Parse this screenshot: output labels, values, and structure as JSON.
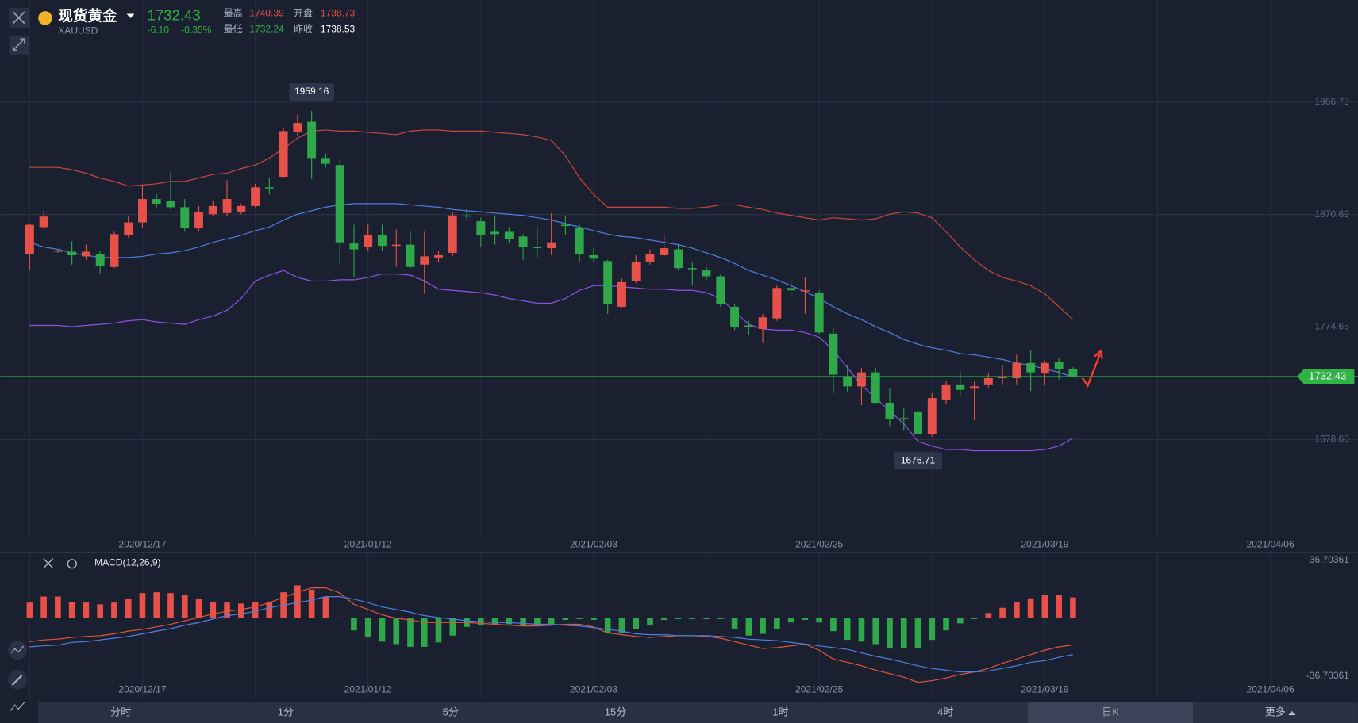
{
  "quote": {
    "name": "现货黄金",
    "symbol": "XAUUSD",
    "last": "1732.43",
    "change": "-6.10",
    "change_pct": "-0.35%",
    "high_label": "最高",
    "high": "1740.39",
    "open_label": "开盘",
    "open": "1738.73",
    "low_label": "最低",
    "low": "1732.24",
    "prev_label": "昨收",
    "prev_close": "1738.53"
  },
  "tabs": [
    "分时",
    "1分",
    "5分",
    "15分",
    "1时",
    "4时",
    "日K",
    "更多"
  ],
  "active_tab": 6,
  "chart_data": [
    {
      "type": "candlestick",
      "up_color": "#e8514a",
      "down_color": "#2ea84a",
      "open": [
        1837,
        1860,
        1839,
        1839,
        1835,
        1837,
        1826,
        1853,
        1864,
        1884,
        1882,
        1877,
        1859,
        1871,
        1872,
        1873,
        1878,
        1894,
        1903,
        1941,
        1950,
        1919,
        1913,
        1846,
        1843,
        1853,
        1844,
        1845,
        1828,
        1834,
        1838,
        1870,
        1865,
        1856,
        1856,
        1852,
        1843,
        1842,
        1862,
        1859,
        1836,
        1831,
        1792,
        1814,
        1830,
        1836,
        1841,
        1825,
        1823,
        1818,
        1792,
        1776,
        1773,
        1782,
        1808,
        1805,
        1804,
        1769,
        1732,
        1724,
        1736,
        1710,
        1697,
        1702,
        1683,
        1712,
        1725,
        1722,
        1725,
        1731,
        1731,
        1744,
        1735,
        1745,
        1738.73
      ],
      "high": [
        1863,
        1874,
        1841,
        1848,
        1845,
        1840,
        1856,
        1869,
        1895,
        1888,
        1907,
        1884,
        1878,
        1882,
        1900,
        1880,
        1897,
        1902,
        1945,
        1956,
        1959.16,
        1923,
        1917,
        1862,
        1862,
        1862,
        1858,
        1857,
        1856,
        1840,
        1873,
        1875,
        1868,
        1870,
        1860,
        1854,
        1860,
        1872,
        1870,
        1862,
        1842,
        1832,
        1816,
        1836,
        1841,
        1854,
        1845,
        1830,
        1826,
        1820,
        1794,
        1780,
        1786,
        1810,
        1815,
        1817,
        1806,
        1774,
        1742,
        1740,
        1740,
        1722,
        1705,
        1710,
        1718,
        1729,
        1737,
        1728,
        1735,
        1742,
        1751,
        1755,
        1746,
        1748,
        1740.39
      ],
      "low": [
        1823,
        1858,
        1838,
        1828,
        1832,
        1820,
        1825,
        1851,
        1860,
        1877,
        1875,
        1856,
        1857,
        1869,
        1869,
        1871,
        1877,
        1888,
        1902,
        1938,
        1901,
        1911,
        1829,
        1817,
        1840,
        1840,
        1826,
        1825,
        1803,
        1830,
        1835,
        1866,
        1843,
        1845,
        1846,
        1832,
        1834,
        1836,
        1853,
        1830,
        1830,
        1786,
        1791,
        1812,
        1828,
        1835,
        1823,
        1810,
        1815,
        1792,
        1772,
        1768,
        1761,
        1780,
        1800,
        1786,
        1769,
        1718,
        1719,
        1708,
        1709,
        1690,
        1686,
        1676.71,
        1681,
        1709,
        1716,
        1695,
        1723,
        1725,
        1725,
        1720,
        1725,
        1730,
        1732.24
      ],
      "close": [
        1862,
        1869,
        1840,
        1836,
        1839,
        1827,
        1854,
        1864,
        1884,
        1880,
        1877,
        1859,
        1873,
        1878,
        1884,
        1878,
        1894,
        1893,
        1942,
        1949,
        1919,
        1914,
        1847,
        1841,
        1853,
        1844,
        1845,
        1826,
        1835,
        1836,
        1870,
        1869,
        1853,
        1854,
        1850,
        1843,
        1842,
        1847,
        1861,
        1837,
        1833,
        1794,
        1813,
        1830,
        1837,
        1842,
        1825,
        1824,
        1818,
        1794,
        1775,
        1775,
        1783,
        1808,
        1806,
        1806,
        1770,
        1734,
        1724,
        1736,
        1710,
        1696,
        1696,
        1683,
        1714,
        1725,
        1721,
        1724,
        1731,
        1732,
        1744,
        1736,
        1744,
        1738.53,
        1732.43
      ],
      "bands": [
        {
          "color": "#c9463b",
          "values": [
            1911,
            1911,
            1911,
            1909,
            1906,
            1902,
            1899,
            1895,
            1896,
            1897,
            1899,
            1899,
            1902,
            1905,
            1906,
            1910,
            1913,
            1919,
            1927,
            1936,
            1942,
            1943,
            1942,
            1942,
            1941,
            1940,
            1939,
            1942,
            1943,
            1943,
            1942,
            1942,
            1942,
            1941,
            1940,
            1939,
            1937,
            1934,
            1921,
            1902,
            1888,
            1877,
            1877,
            1877,
            1877,
            1877,
            1876,
            1876,
            1877,
            1879,
            1879,
            1877,
            1875,
            1872,
            1870,
            1868,
            1866,
            1868,
            1867,
            1866,
            1867,
            1871,
            1873,
            1872,
            1868,
            1856,
            1843,
            1832,
            1823,
            1817,
            1814,
            1810,
            1803,
            1792,
            1781
          ]
        },
        {
          "color": "#4d7fe3",
          "values": [
            1847,
            1843,
            1841,
            1838,
            1836,
            1834,
            1834,
            1834,
            1835,
            1837,
            1838,
            1840,
            1843,
            1847,
            1850,
            1853,
            1857,
            1860,
            1866,
            1871,
            1874,
            1877,
            1879,
            1880,
            1880,
            1880,
            1880,
            1879,
            1878,
            1877,
            1875,
            1874,
            1873,
            1872,
            1871,
            1870,
            1868,
            1866,
            1863,
            1860,
            1857,
            1854,
            1852,
            1851,
            1849,
            1847,
            1845,
            1842,
            1838,
            1834,
            1829,
            1823,
            1819,
            1815,
            1810,
            1805,
            1799,
            1792,
            1786,
            1781,
            1775,
            1770,
            1764,
            1760,
            1757,
            1755,
            1752,
            1751,
            1749,
            1747,
            1744,
            1742,
            1739,
            1736,
            1732
          ]
        },
        {
          "color": "#8d52e6",
          "values": [
            1776,
            1776,
            1776,
            1775,
            1776,
            1777,
            1778,
            1780,
            1781,
            1779,
            1778,
            1777,
            1781,
            1784,
            1789,
            1799,
            1814,
            1819,
            1823,
            1817,
            1814,
            1814,
            1815,
            1815,
            1817,
            1820,
            1820,
            1819,
            1814,
            1807,
            1806,
            1805,
            1804,
            1802,
            1799,
            1797,
            1795,
            1795,
            1799,
            1806,
            1810,
            1810,
            1809,
            1808,
            1807,
            1807,
            1806,
            1806,
            1804,
            1799,
            1788,
            1777,
            1773,
            1772,
            1772,
            1770,
            1766,
            1755,
            1740,
            1725,
            1714,
            1703,
            1692,
            1677,
            1673,
            1670,
            1670,
            1669,
            1669,
            1669,
            1669,
            1669,
            1670,
            1673,
            1680
          ]
        }
      ],
      "ylim": [
        1596,
        2054
      ],
      "yticks": [
        1966.73,
        1870.69,
        1774.65,
        {
          "value": 1678.6,
          "label": "1678.60"
        }
      ],
      "xlim": [
        -2.09,
        94.2
      ],
      "xticks": [
        {
          "value": 8,
          "label": "2020/12/17"
        },
        {
          "value": 24,
          "label": "2021/01/12"
        },
        {
          "value": 40,
          "label": "2021/02/03"
        },
        {
          "value": 56,
          "label": "2021/02/25"
        },
        {
          "value": 72,
          "label": "2021/03/19"
        },
        {
          "value": 88,
          "label": "2021/04/06"
        }
      ],
      "xminor": [
        0,
        16,
        32,
        48,
        64,
        80
      ],
      "grid": true,
      "last_color": "#2fb344"
    },
    {
      "type": "macd",
      "title": "MACD(12,26,9)",
      "up_color": "#e8514a",
      "down_color": "#2ea84a",
      "histogram": [
        9.9,
        13.7,
        13.7,
        10.4,
        9.9,
        8.8,
        9.9,
        12.1,
        15.9,
        16.4,
        15.9,
        14.8,
        12.1,
        10.4,
        9.9,
        9.3,
        10.4,
        10.4,
        16.4,
        20.8,
        18.1,
        13.7,
        0.5,
        -7.7,
        -12.1,
        -14.8,
        -16.4,
        -18.1,
        -18.1,
        -15.3,
        -11.0,
        -5.5,
        -4.4,
        -4.4,
        -3.8,
        -4.4,
        -4.4,
        -3.8,
        -1.1,
        -0.5,
        -1.1,
        -9.3,
        -9.3,
        -7.1,
        -4.4,
        -1.1,
        -0.5,
        -0.5,
        -0.5,
        -0.5,
        -7.1,
        -11.0,
        -9.9,
        -6.6,
        -2.7,
        -1.1,
        -2.7,
        -8.2,
        -13.7,
        -14.8,
        -16.4,
        -19.2,
        -19.2,
        -18.6,
        -13.7,
        -7.7,
        -3.3,
        -0.5,
        3.3,
        6.6,
        10.4,
        12.6,
        14.8,
        14.8,
        13.2
      ],
      "lines": [
        {
          "color": "#e0553a",
          "values": [
            -14.8,
            -13.7,
            -13.2,
            -12.1,
            -11.5,
            -11.0,
            -9.9,
            -8.2,
            -7.1,
            -5.5,
            -3.8,
            -1.6,
            0.5,
            2.7,
            4.4,
            5.5,
            7.1,
            9.9,
            13.2,
            16.4,
            19.2,
            19.2,
            15.9,
            8.8,
            5.5,
            2.2,
            0,
            -1.1,
            -2.7,
            -2.7,
            -2.7,
            -2.7,
            -3.3,
            -3.8,
            -4.4,
            -4.9,
            -4.9,
            -4.4,
            -3.8,
            -3.8,
            -5.5,
            -9.3,
            -10.4,
            -11.5,
            -12.1,
            -11.5,
            -11.0,
            -11.0,
            -11.5,
            -12.6,
            -14.8,
            -17.0,
            -19.2,
            -18.6,
            -17.5,
            -16.4,
            -20.3,
            -25.8,
            -27.9,
            -30.1,
            -32.9,
            -35.1,
            -37.3,
            -40.6,
            -39.5,
            -37.8,
            -35.6,
            -34.0,
            -31.8,
            -28.5,
            -25.8,
            -23.0,
            -20.3,
            -18.1,
            -17.0
          ]
        },
        {
          "color": "#4d7fe3",
          "values": [
            -18.1,
            -17.5,
            -17.0,
            -15.3,
            -14.8,
            -13.7,
            -12.6,
            -11.5,
            -9.9,
            -8.2,
            -6.6,
            -4.4,
            -2.7,
            -0.5,
            1.6,
            2.7,
            4.4,
            6.6,
            8.2,
            9.9,
            11.5,
            13.7,
            13.7,
            12.1,
            9.9,
            7.1,
            5.5,
            3.8,
            1.6,
            0.5,
            -0.5,
            -1.6,
            -2.2,
            -2.7,
            -2.7,
            -3.3,
            -3.8,
            -3.8,
            -4.4,
            -4.9,
            -6.0,
            -7.1,
            -8.2,
            -9.9,
            -10.4,
            -10.4,
            -11.0,
            -11.0,
            -11.0,
            -11.5,
            -12.1,
            -13.2,
            -13.7,
            -14.2,
            -15.3,
            -16.4,
            -17.5,
            -18.6,
            -19.7,
            -21.9,
            -24.1,
            -25.8,
            -27.9,
            -30.1,
            -31.8,
            -32.9,
            -34.0,
            -34.0,
            -33.4,
            -31.8,
            -30.1,
            -27.9,
            -26.9,
            -24.7,
            -23.0
          ]
        }
      ],
      "ylim": [
        -51,
        41
      ],
      "yticks": [
        36.70361,
        -36.70361
      ],
      "xlim": [
        -2.09,
        94.2
      ],
      "xticks": [
        {
          "value": 8,
          "label": "2020/12/17"
        },
        {
          "value": 24,
          "label": "2021/01/12"
        },
        {
          "value": 40,
          "label": "2021/02/03"
        },
        {
          "value": 56,
          "label": "2021/02/25"
        },
        {
          "value": 72,
          "label": "2021/03/19"
        },
        {
          "value": 88,
          "label": "2021/04/06"
        }
      ],
      "xminor": [
        0,
        16,
        32,
        48,
        64,
        80
      ]
    }
  ]
}
